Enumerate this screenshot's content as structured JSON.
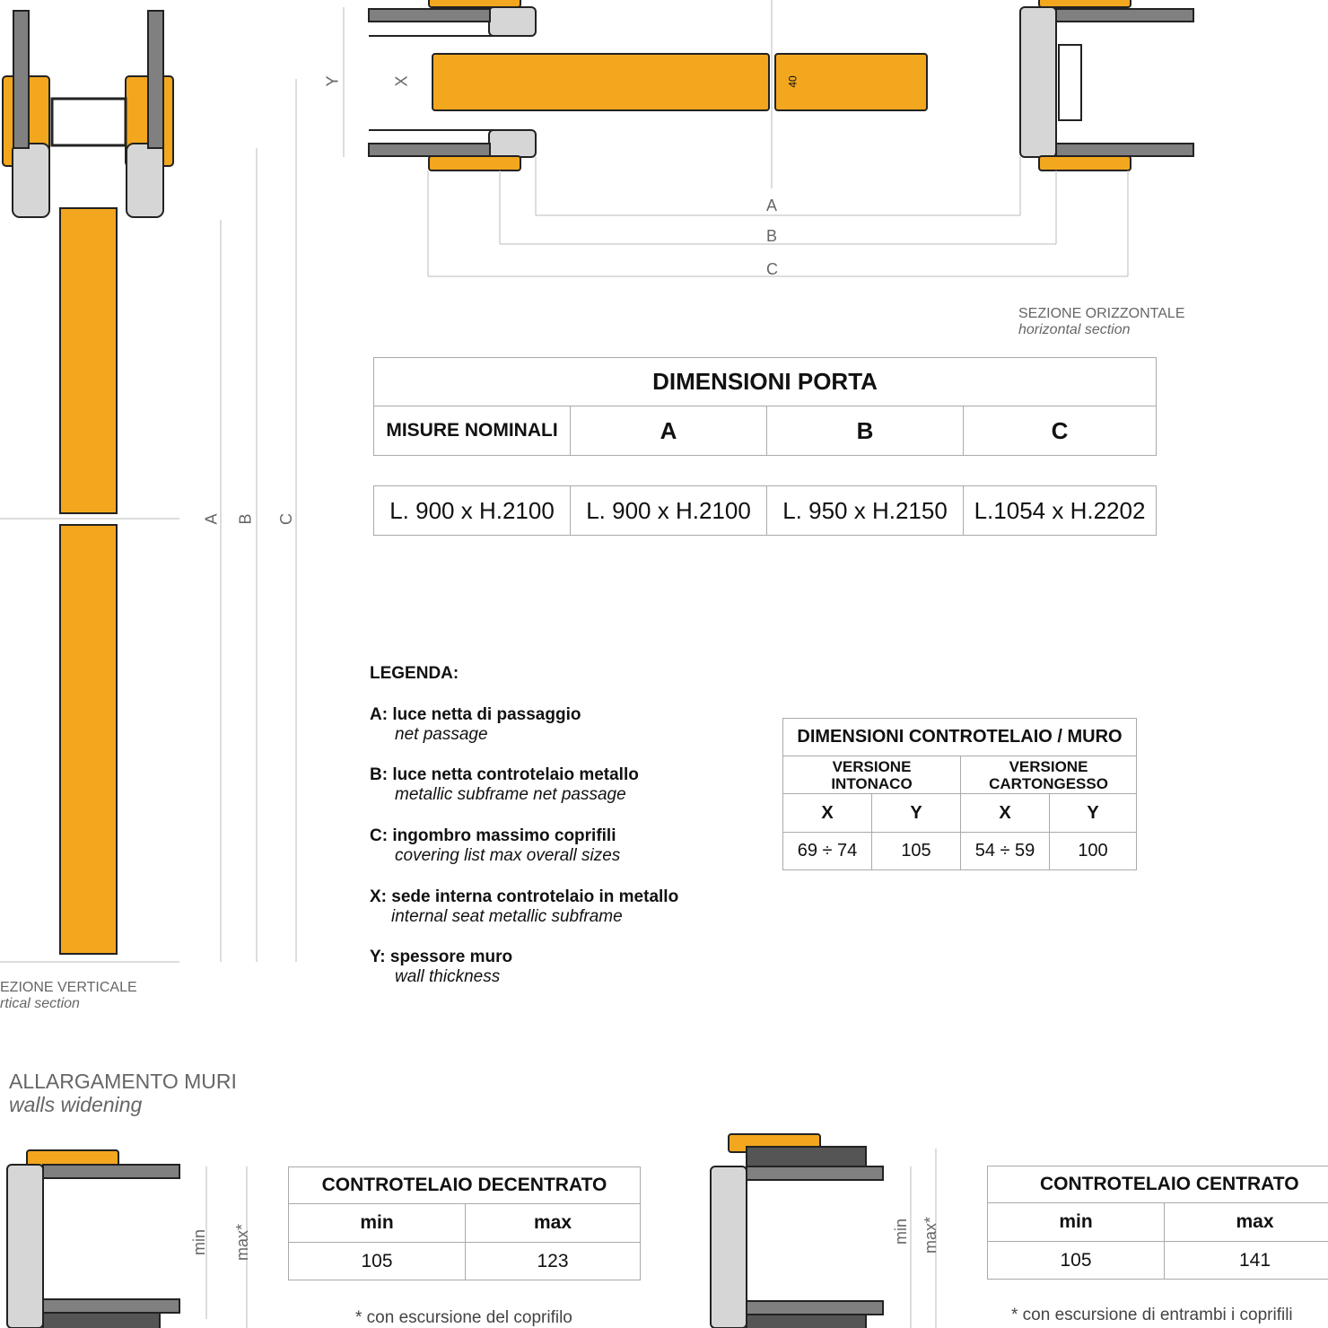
{
  "horizontal_section": {
    "caption": "SEZIONE ORIZZONTALE",
    "caption_en": "horizontal section",
    "labels": {
      "y": "Y",
      "x": "X",
      "a": "A",
      "b": "B",
      "c": "C",
      "thickness": "40"
    }
  },
  "vertical_section": {
    "caption": "EZIONE VERTICALE",
    "caption_en": "rtical section",
    "labels": {
      "a": "A",
      "b": "B",
      "c": "C"
    }
  },
  "door_dimensions_table": {
    "title": "DIMENSIONI PORTA",
    "headers": [
      "MISURE NOMINALI",
      "A",
      "B",
      "C"
    ],
    "values": [
      "L. 900 x H.2100",
      "L. 900 x H.2100",
      "L. 950 x H.2150",
      "L.1054 x H.2202"
    ]
  },
  "legend": {
    "title": "LEGENDA:",
    "items": [
      {
        "key": "A:",
        "it": "luce netta di passaggio",
        "en": "net passage"
      },
      {
        "key": "B:",
        "it": "luce netta controtelaio metallo",
        "en": "metallic subframe net passage"
      },
      {
        "key": "C:",
        "it": "ingombro massimo coprifili",
        "en": "covering list max overall sizes"
      },
      {
        "key": "X:",
        "it": "sede interna controtelaio in metallo",
        "en": "internal seat metallic subframe"
      },
      {
        "key": "Y:",
        "it": "spessore muro",
        "en": "wall thickness"
      }
    ]
  },
  "frame_wall_table": {
    "title": "DIMENSIONI CONTROTELAIO / MURO",
    "versions": [
      "VERSIONE INTONACO",
      "VERSIONE CARTONGESSO"
    ],
    "columns": [
      "X",
      "Y",
      "X",
      "Y"
    ],
    "values": [
      "69 ÷ 74",
      "105",
      "54 ÷ 59",
      "100"
    ]
  },
  "walls_widening": {
    "title": "ALLARGAMENTO MURI",
    "subtitle": "walls widening",
    "dim_labels": {
      "min": "min",
      "max": "max*"
    },
    "decentrato": {
      "title": "CONTROTELAIO DECENTRATO",
      "headers": [
        "min",
        "max"
      ],
      "values": [
        "105",
        "123"
      ],
      "note": "* con escursione del coprifilo"
    },
    "centrato": {
      "title": "CONTROTELAIO CENTRATO",
      "headers": [
        "min",
        "max"
      ],
      "values": [
        "105",
        "141"
      ],
      "note": "* con escursione di entrambi i  coprifili"
    }
  },
  "colors": {
    "door": "#f2a71e",
    "frame": "#d6d6d6",
    "wall": "#808080",
    "outline": "#222222",
    "dim": "#bbbbbb"
  }
}
